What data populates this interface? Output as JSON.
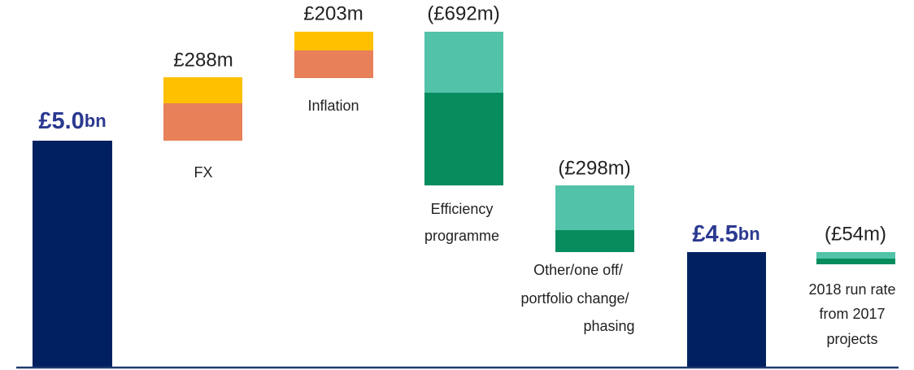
{
  "items": [
    {
      "value_label": "£5.0bn"
    },
    {
      "value_label": "£288m",
      "label": [
        "FX"
      ]
    },
    {
      "value_label": "£203m",
      "label": [
        "Inflation"
      ]
    },
    {
      "value_label": "(£692m)",
      "label": [
        "Efficiency",
        "programme"
      ]
    },
    {
      "value_label": "(£298m)",
      "label": [
        "Other/one off/",
        "portfolio change/",
        "phasing"
      ]
    },
    {
      "value_label": "£4.5bn"
    },
    {
      "value_label": "(£54m)",
      "label": [
        "2018 run rate",
        "from 2017",
        "projects"
      ]
    }
  ]
}
